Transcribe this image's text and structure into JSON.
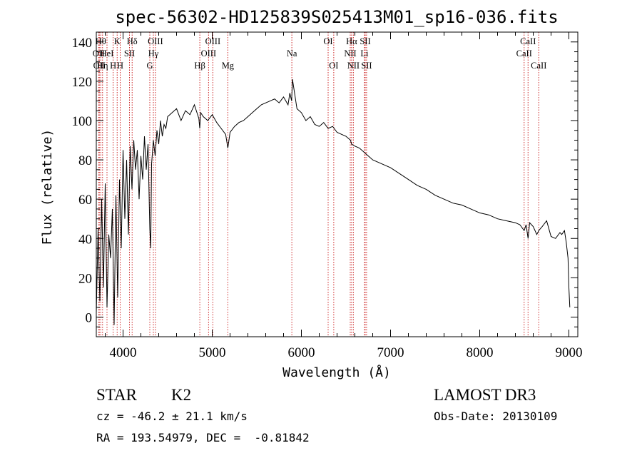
{
  "chart_data": {
    "type": "line",
    "title": "spec-56302-HD125839S025413M01_sp16-036.fits",
    "xlabel": "Wavelength (Å)",
    "ylabel": "Flux (relative)",
    "xlim": [
      3700,
      9100
    ],
    "ylim": [
      -10,
      145
    ],
    "xticks": [
      4000,
      5000,
      6000,
      7000,
      8000,
      9000
    ],
    "yticks": [
      0,
      20,
      40,
      60,
      80,
      100,
      120,
      140
    ],
    "x_minor_step": 200,
    "y_minor_step": 5,
    "series": [
      {
        "name": "spectrum",
        "x": [
          3700,
          3720,
          3740,
          3760,
          3780,
          3800,
          3820,
          3840,
          3860,
          3880,
          3900,
          3920,
          3940,
          3960,
          3980,
          4000,
          4020,
          4040,
          4060,
          4080,
          4100,
          4120,
          4140,
          4160,
          4180,
          4200,
          4220,
          4240,
          4260,
          4280,
          4300,
          4310,
          4320,
          4340,
          4360,
          4380,
          4400,
          4420,
          4440,
          4460,
          4480,
          4500,
          4550,
          4600,
          4650,
          4700,
          4750,
          4800,
          4850,
          4860,
          4870,
          4900,
          4950,
          5000,
          5050,
          5100,
          5150,
          5175,
          5200,
          5250,
          5300,
          5350,
          5400,
          5450,
          5500,
          5550,
          5600,
          5650,
          5700,
          5750,
          5800,
          5850,
          5870,
          5890,
          5900,
          5920,
          5950,
          6000,
          6050,
          6100,
          6150,
          6200,
          6250,
          6300,
          6350,
          6400,
          6450,
          6500,
          6550,
          6563,
          6600,
          6650,
          6700,
          6750,
          6800,
          6900,
          7000,
          7100,
          7200,
          7300,
          7400,
          7500,
          7600,
          7700,
          7800,
          7900,
          8000,
          8100,
          8200,
          8300,
          8400,
          8450,
          8498,
          8520,
          8542,
          8560,
          8600,
          8640,
          8662,
          8700,
          8750,
          8800,
          8850,
          8900,
          8920,
          8950,
          8970,
          8990,
          9000,
          9010
        ],
        "values": [
          2,
          45,
          8,
          60,
          15,
          68,
          5,
          42,
          30,
          55,
          -4,
          62,
          10,
          70,
          35,
          85,
          50,
          80,
          42,
          87,
          65,
          90,
          75,
          85,
          60,
          82,
          70,
          92,
          75,
          88,
          45,
          35,
          78,
          90,
          82,
          95,
          88,
          100,
          92,
          98,
          96,
          102,
          104,
          106,
          100,
          105,
          103,
          108,
          101,
          96,
          104,
          102,
          100,
          103,
          99,
          96,
          93,
          86,
          94,
          97,
          99,
          100,
          102,
          104,
          106,
          108,
          109,
          110,
          111,
          109,
          112,
          108,
          114,
          110,
          121,
          115,
          106,
          104,
          100,
          102,
          98,
          97,
          99,
          96,
          97,
          94,
          93,
          92,
          90,
          88,
          87,
          86,
          84,
          82,
          80,
          78,
          76,
          73,
          70,
          67,
          65,
          62,
          60,
          58,
          57,
          55,
          53,
          52,
          50,
          49,
          48,
          47,
          44,
          47,
          40,
          48,
          46,
          42,
          44,
          46,
          49,
          41,
          40,
          43,
          42,
          44,
          38,
          30,
          15,
          5
        ]
      }
    ],
    "lines": [
      {
        "wavelength": 3727,
        "label": "OII",
        "row": 2
      },
      {
        "wavelength": 3734,
        "label": "OII",
        "row": 3
      },
      {
        "wavelength": 3750,
        "label": "Hθ",
        "row": 1
      },
      {
        "wavelength": 3770,
        "label": "Hη",
        "row": 3
      },
      {
        "wavelength": 3820,
        "label": "HeI",
        "row": 2
      },
      {
        "wavelength": 3889,
        "label": "H",
        "row": 3
      },
      {
        "wavelength": 3934,
        "label": "K",
        "row": 1
      },
      {
        "wavelength": 3968,
        "label": "H",
        "row": 3
      },
      {
        "wavelength": 4072,
        "label": "SII",
        "row": 2
      },
      {
        "wavelength": 4102,
        "label": "Hδ",
        "row": 1
      },
      {
        "wavelength": 4300,
        "label": "G",
        "row": 3
      },
      {
        "wavelength": 4340,
        "label": "Hγ",
        "row": 2
      },
      {
        "wavelength": 4363,
        "label": "OIII",
        "row": 1
      },
      {
        "wavelength": 4861,
        "label": "Hβ",
        "row": 3
      },
      {
        "wavelength": 4959,
        "label": "OIII",
        "row": 2
      },
      {
        "wavelength": 5007,
        "label": "OIII",
        "row": 1
      },
      {
        "wavelength": 5175,
        "label": "Mg",
        "row": 3
      },
      {
        "wavelength": 5893,
        "label": "Na",
        "row": 2
      },
      {
        "wavelength": 6300,
        "label": "OI",
        "row": 1
      },
      {
        "wavelength": 6363,
        "label": "OI",
        "row": 3
      },
      {
        "wavelength": 6548,
        "label": "NII",
        "row": 2
      },
      {
        "wavelength": 6563,
        "label": "Hα",
        "row": 1
      },
      {
        "wavelength": 6583,
        "label": "NII",
        "row": 3
      },
      {
        "wavelength": 6707,
        "label": "Li",
        "row": 2
      },
      {
        "wavelength": 6716,
        "label": "SII",
        "row": 1
      },
      {
        "wavelength": 6731,
        "label": "SII",
        "row": 3
      },
      {
        "wavelength": 8498,
        "label": "CaII",
        "row": 2
      },
      {
        "wavelength": 8542,
        "label": "CaII",
        "row": 1
      },
      {
        "wavelength": 8662,
        "label": "CaII",
        "row": 3
      }
    ],
    "line_color": "#cc2222",
    "spectrum_color": "#000000"
  },
  "info": {
    "object_class": "STAR",
    "subclass": "K2",
    "survey": "LAMOST DR3",
    "velocity": "cz = -46.2 ± 21.1 km/s",
    "obs_date": "Obs-Date: 20130109",
    "coords": "RA = 193.54979, DEC =  -0.81842"
  }
}
